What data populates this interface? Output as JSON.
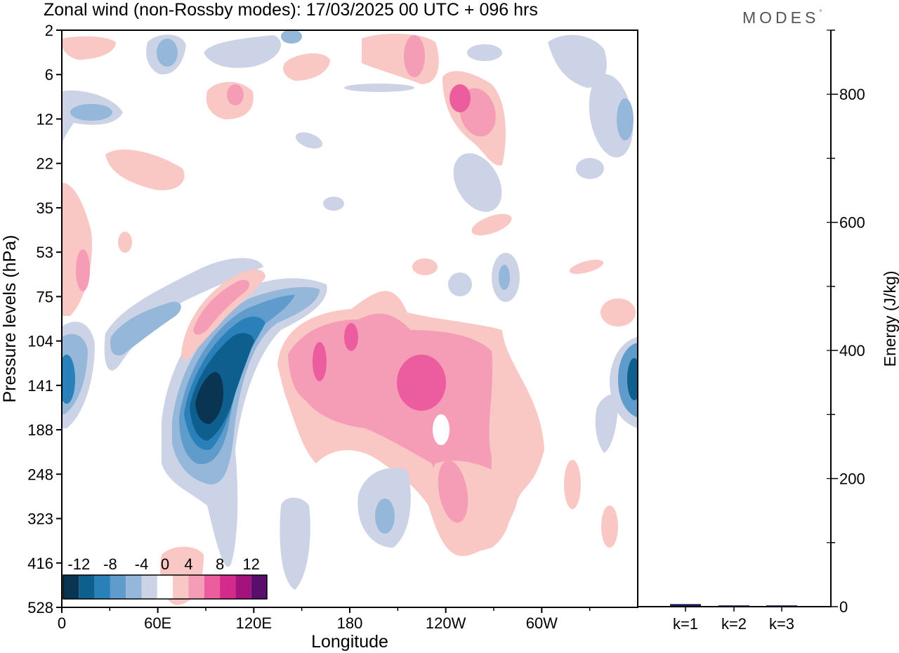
{
  "title": "Zonal wind (non-Rossby modes):  17/03/2025  00 UTC  + 096 hrs",
  "brand": "MODES",
  "brand_mark": "°",
  "chart_data": [
    {
      "type": "heatmap",
      "xlabel": "Longitude",
      "ylabel": "Pressure levels (hPa)",
      "x_ticks": [
        "0",
        "60E",
        "120E",
        "180",
        "120W",
        "60W"
      ],
      "y_ticks": [
        "2",
        "6",
        "12",
        "22",
        "35",
        "53",
        "75",
        "104",
        "141",
        "188",
        "248",
        "323",
        "416",
        "528"
      ],
      "xlim": [
        0,
        360
      ],
      "colorbar": {
        "labels": [
          "-12",
          "-8",
          "-4",
          "0",
          "4",
          "8",
          "12"
        ],
        "levels": [
          -14,
          -12,
          -10,
          -8,
          -6,
          -4,
          -2,
          2,
          4,
          6,
          8,
          10,
          12,
          14
        ],
        "colors": [
          "#0a3552",
          "#0f5f8e",
          "#2a80b9",
          "#5f9ccb",
          "#94b7da",
          "#cdd3e6",
          "#ffffff",
          "#f9c7c4",
          "#f59db6",
          "#ec5d9f",
          "#d42a8c",
          "#a4127b",
          "#5a0e6b"
        ]
      },
      "features": [
        {
          "name": "negative-jet",
          "lon_range": [
            55,
            130
          ],
          "p_range": [
            75,
            250
          ],
          "min_value": -14
        },
        {
          "name": "negative-edge-west",
          "lon_range": [
            0,
            20
          ],
          "p_range": [
            104,
            188
          ],
          "min_value": -10
        },
        {
          "name": "negative-edge-east",
          "lon_range": [
            350,
            360
          ],
          "p_range": [
            104,
            188
          ],
          "min_value": -10
        },
        {
          "name": "positive-band",
          "lon_range": [
            140,
            275
          ],
          "p_range": [
            75,
            416
          ],
          "max_value": 8
        },
        {
          "name": "positive-upper",
          "lon_range": [
            210,
            285
          ],
          "p_range": [
            2,
            22
          ],
          "max_value": 6
        }
      ]
    },
    {
      "type": "bar",
      "categories": [
        "k=1",
        "k=2",
        "k=3"
      ],
      "values": [
        4,
        2,
        2
      ],
      "ylabel": "Energy (J/kg)",
      "y_ticks": [
        "0",
        "200",
        "400",
        "600",
        "800"
      ],
      "ylim": [
        0,
        900
      ],
      "bar_color": "#1a1a5a"
    }
  ]
}
